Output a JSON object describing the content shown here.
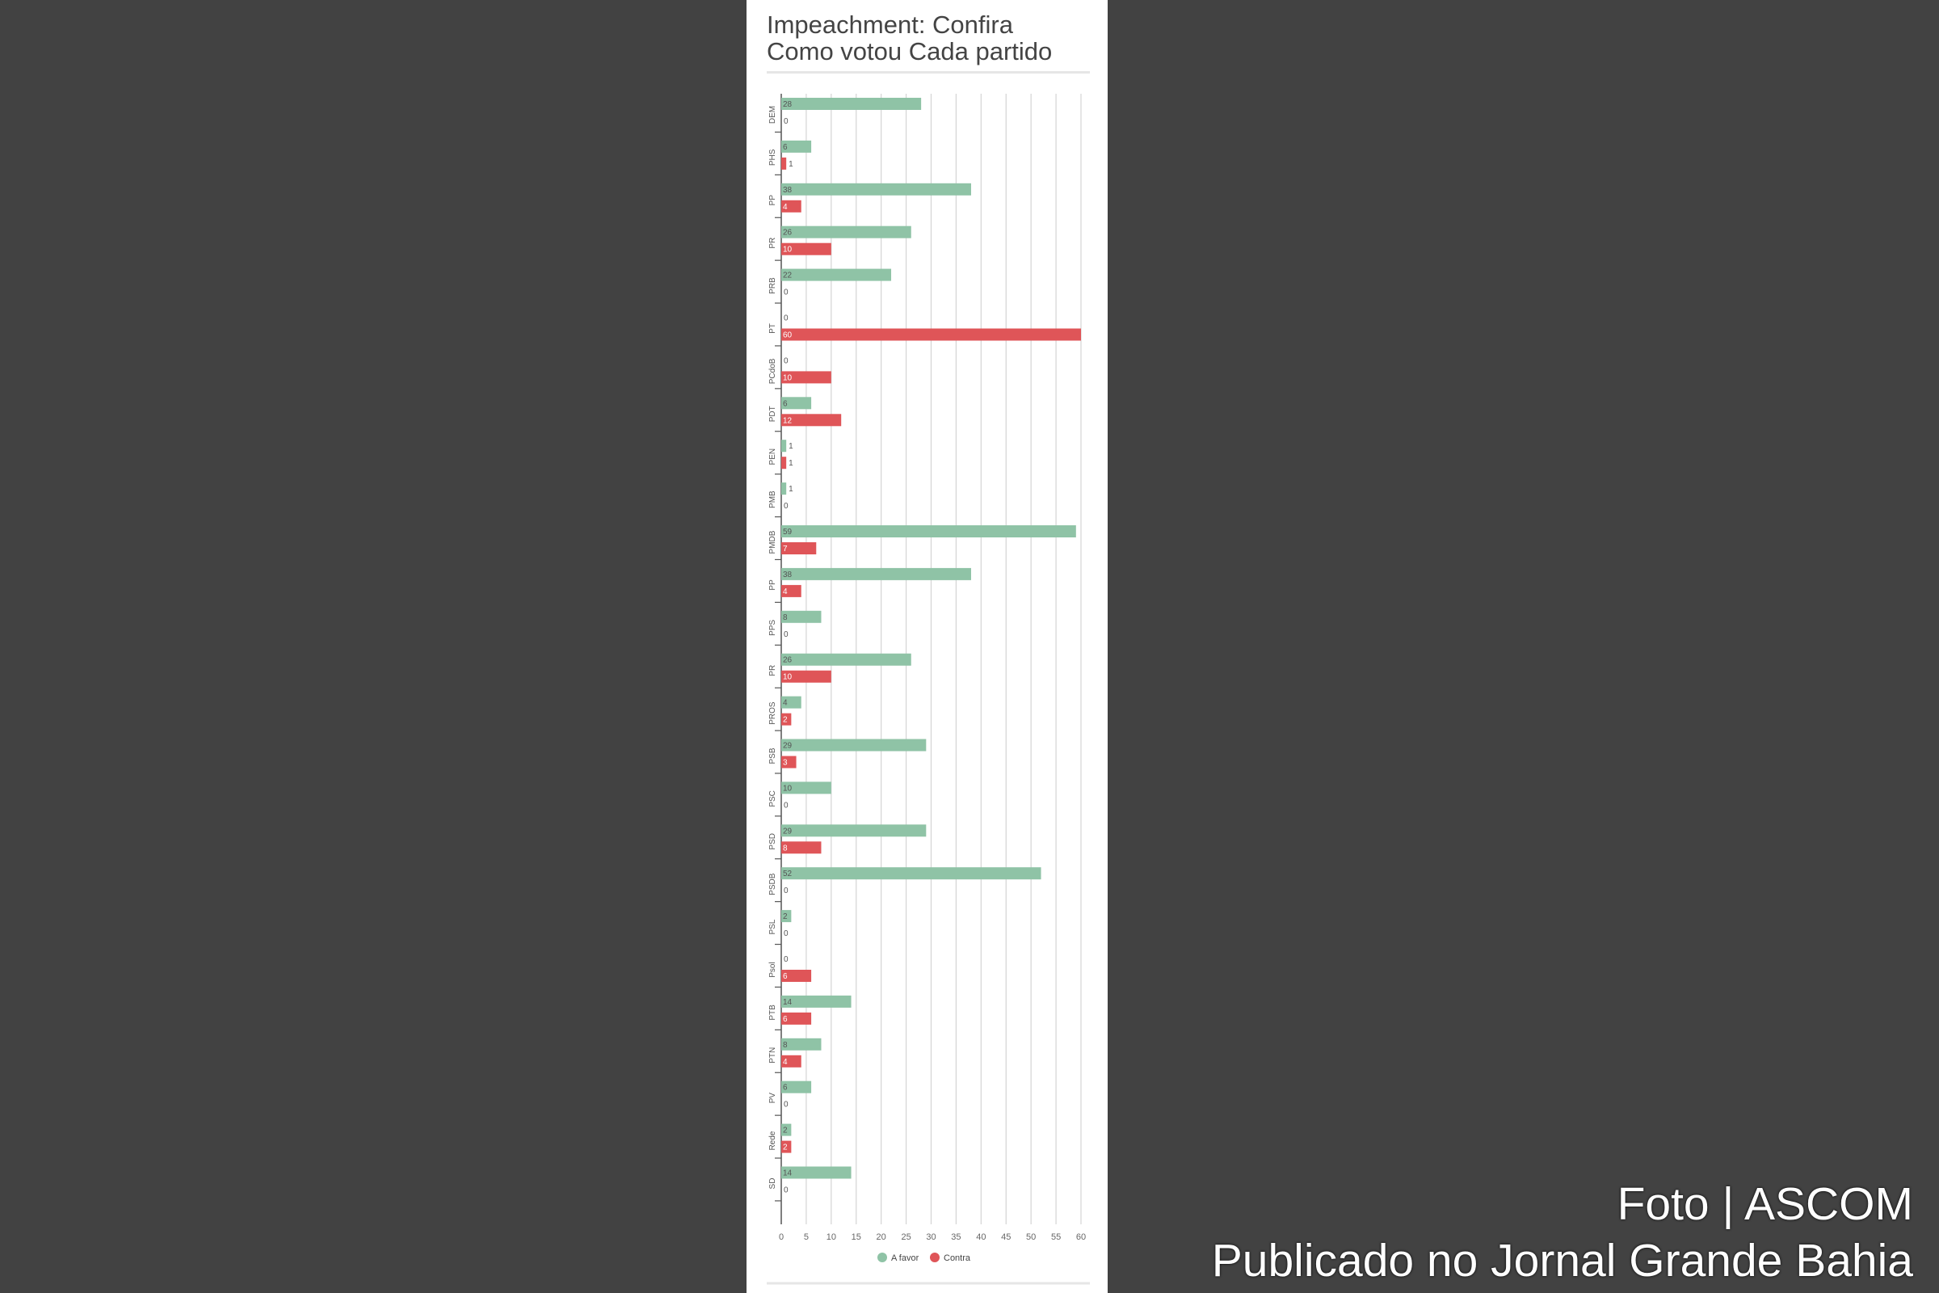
{
  "title_lines": [
    "Impeachment: Confira",
    "Como votou Cada partido"
  ],
  "credit": {
    "line1": "Foto | ASCOM",
    "line2": "Publicado no Jornal Grande Bahia"
  },
  "colors": {
    "favor": "#8fc3a6",
    "contra": "#df5558",
    "grid": "#d4d4d4",
    "axis": "#555555"
  },
  "chart_data": {
    "type": "bar",
    "orientation": "horizontal",
    "title": "Impeachment: Confira Como votou Cada partido",
    "categories": [
      "DEM",
      "PHS",
      "PP",
      "PR",
      "PRB",
      "PT",
      "PCdoB",
      "PDT",
      "PEN",
      "PMB",
      "PMDB",
      "PP",
      "PPS",
      "PR",
      "PROS",
      "PSB",
      "PSC",
      "PSD",
      "PSDB",
      "PSL",
      "Psol",
      "PTB",
      "PTN",
      "PV",
      "Rede",
      "SD"
    ],
    "series": [
      {
        "name": "A favor",
        "values": [
          28,
          6,
          38,
          26,
          22,
          0,
          0,
          6,
          1,
          1,
          59,
          38,
          8,
          26,
          4,
          29,
          10,
          29,
          52,
          2,
          0,
          14,
          8,
          6,
          2,
          14
        ]
      },
      {
        "name": "Contra",
        "values": [
          0,
          1,
          4,
          10,
          0,
          60,
          10,
          12,
          1,
          0,
          7,
          4,
          0,
          10,
          2,
          3,
          0,
          8,
          0,
          0,
          6,
          6,
          4,
          0,
          2,
          0
        ]
      }
    ],
    "x_ticks": [
      0,
      5,
      10,
      15,
      20,
      25,
      30,
      35,
      40,
      45,
      50,
      55,
      60
    ],
    "xlim": [
      0,
      60
    ],
    "grid": true,
    "legend_position": "bottom"
  }
}
